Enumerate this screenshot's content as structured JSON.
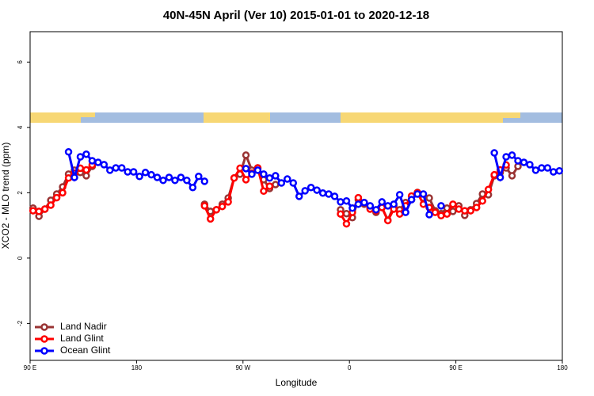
{
  "chart_data": {
    "type": "line",
    "title": "40N-45N April (Ver 10)   2015-01-01 to 2020-12-18",
    "xlabel": "Longitude",
    "ylabel": "XCO2 - MLO trend (ppm)",
    "x": [
      92.5,
      97.5,
      102.5,
      107.5,
      112.5,
      117.5,
      122.5,
      127.5,
      132.5,
      137.5,
      142.5,
      147.5,
      152.5,
      157.5,
      162.5,
      167.5,
      172.5,
      177.5,
      182.5,
      187.5,
      192.5,
      197.5,
      202.5,
      207.5,
      212.5,
      217.5,
      222.5,
      227.5,
      232.5,
      237.5,
      242.5,
      247.5,
      252.5,
      257.5,
      262.5,
      267.5,
      272.5,
      277.5,
      282.5,
      287.5,
      292.5,
      297.5,
      302.5,
      307.5,
      312.5,
      317.5,
      322.5,
      327.5,
      332.5,
      337.5,
      342.5,
      347.5,
      352.5,
      357.5,
      362.5,
      367.5,
      372.5,
      377.5,
      382.5,
      387.5,
      392.5,
      397.5,
      402.5,
      407.5,
      412.5,
      417.5,
      422.5,
      427.5,
      432.5,
      437.5,
      442.5,
      447.5,
      452.5,
      457.5,
      462.5,
      467.5,
      472.5,
      477.5,
      482.5,
      487.5,
      492.5,
      497.5,
      502.5,
      507.5,
      512.5,
      517.5,
      522.5,
      527.5,
      532.5,
      537.5
    ],
    "xlim": [
      90,
      540
    ],
    "xticks": [
      {
        "value": 90,
        "label": "90 E"
      },
      180,
      {
        "value": 270,
        "label": "90 W"
      },
      {
        "value": 360,
        "label": "0"
      },
      {
        "value": 450,
        "label": "90 E"
      },
      {
        "value": 540,
        "label": "180"
      }
    ],
    "ylim": [
      -3.13,
      6.93
    ],
    "yticks": [
      -2,
      0,
      2,
      4,
      6
    ],
    "legend": "bottomleft",
    "series": [
      {
        "name": "Land Nadir",
        "color": "#993333",
        "values": [
          1.53,
          1.28,
          1.5,
          1.77,
          1.96,
          2.18,
          2.57,
          2.69,
          2.62,
          2.52,
          2.81,
          null,
          null,
          null,
          null,
          null,
          null,
          null,
          null,
          null,
          null,
          null,
          null,
          null,
          null,
          null,
          null,
          null,
          null,
          1.65,
          1.43,
          1.48,
          1.65,
          1.84,
          2.45,
          2.57,
          3.15,
          2.69,
          2.76,
          2.4,
          2.13,
          2.25,
          null,
          null,
          null,
          null,
          null,
          null,
          null,
          null,
          null,
          null,
          1.48,
          1.36,
          1.24,
          1.79,
          1.65,
          1.53,
          1.4,
          1.55,
          1.16,
          1.6,
          1.48,
          1.7,
          1.79,
          2.01,
          1.84,
          1.84,
          1.45,
          1.36,
          1.53,
          1.43,
          1.6,
          1.31,
          1.48,
          1.67,
          1.96,
          1.94,
          2.52,
          2.62,
          2.76,
          2.52,
          2.81,
          null,
          null,
          null,
          null,
          null,
          null,
          null
        ]
      },
      {
        "name": "Land Glint",
        "color": "#ff0000",
        "values": [
          1.45,
          1.43,
          1.5,
          1.62,
          1.85,
          2.0,
          2.45,
          2.6,
          2.75,
          2.7,
          2.85,
          null,
          null,
          null,
          null,
          null,
          null,
          null,
          null,
          null,
          null,
          null,
          null,
          null,
          null,
          null,
          null,
          null,
          null,
          1.6,
          1.2,
          1.48,
          1.58,
          1.72,
          2.45,
          2.75,
          2.4,
          2.6,
          2.76,
          2.05,
          2.2,
          null,
          null,
          null,
          null,
          null,
          null,
          null,
          null,
          null,
          null,
          null,
          1.35,
          1.05,
          1.4,
          1.85,
          1.7,
          1.5,
          1.45,
          1.55,
          1.15,
          1.5,
          1.35,
          1.6,
          1.9,
          2.0,
          1.65,
          1.55,
          1.4,
          1.3,
          1.35,
          1.65,
          1.5,
          1.45,
          1.45,
          1.55,
          1.75,
          2.1,
          2.55,
          2.7,
          2.85,
          null,
          null,
          null,
          null,
          null,
          null,
          null,
          null,
          null
        ]
      },
      {
        "name": "Ocean Glint",
        "color": "#0000ff",
        "values": [
          null,
          null,
          null,
          null,
          null,
          null,
          3.25,
          2.47,
          3.1,
          3.18,
          2.98,
          2.93,
          2.86,
          2.69,
          2.76,
          2.76,
          2.64,
          2.64,
          2.5,
          2.62,
          2.55,
          2.47,
          2.38,
          2.47,
          2.38,
          2.47,
          2.38,
          2.16,
          2.5,
          2.35,
          null,
          null,
          null,
          null,
          null,
          null,
          2.74,
          2.57,
          2.69,
          2.57,
          2.45,
          2.52,
          2.3,
          2.42,
          2.3,
          1.89,
          2.06,
          2.16,
          2.08,
          1.99,
          1.96,
          1.89,
          1.72,
          1.75,
          1.53,
          1.65,
          1.7,
          1.6,
          1.48,
          1.72,
          1.6,
          1.65,
          1.94,
          1.4,
          1.79,
          1.96,
          1.96,
          1.33,
          null,
          1.6,
          null,
          null,
          null,
          null,
          null,
          null,
          null,
          null,
          3.22,
          2.47,
          3.1,
          3.15,
          2.98,
          2.93,
          2.86,
          2.69,
          2.76,
          2.76,
          2.64,
          2.67
        ]
      }
    ]
  }
}
